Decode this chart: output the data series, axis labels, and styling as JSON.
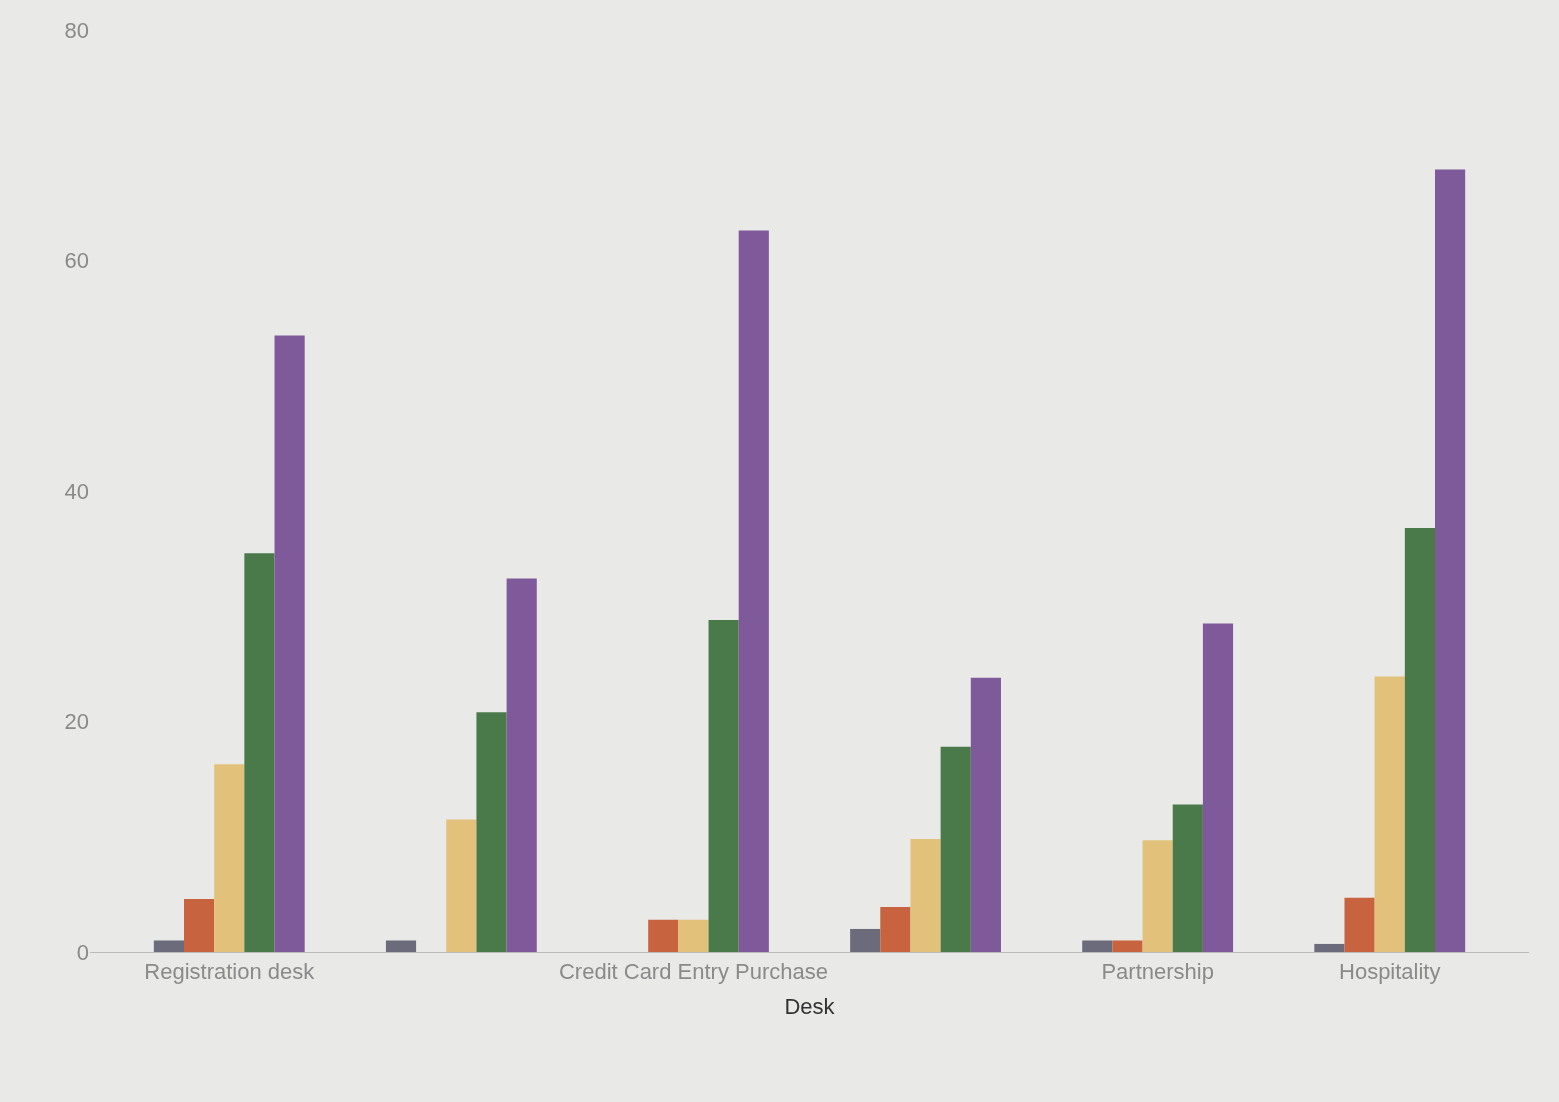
{
  "chart_data": {
    "type": "bar",
    "xlabel": "Desk",
    "categories": [
      "Registration desk",
      null,
      "Credit Card Entry Purchase",
      null,
      "Partnership",
      "Hospitality"
    ],
    "series": [
      {
        "color": "#6b6b7b",
        "values": [
          1,
          1,
          0,
          2,
          1,
          0.7
        ]
      },
      {
        "color": "#c8633f",
        "values": [
          4.6,
          0,
          2.8,
          3.9,
          1,
          4.7
        ]
      },
      {
        "color": "#e2c27a",
        "values": [
          16.3,
          11.5,
          2.8,
          9.8,
          9.7,
          23.9
        ]
      },
      {
        "color": "#4a7a4a",
        "values": [
          34.6,
          20.8,
          28.8,
          17.8,
          12.8,
          36.8
        ]
      },
      {
        "color": "#7f5a9a",
        "values": [
          53.5,
          32.4,
          62.6,
          23.8,
          28.5,
          67.9
        ]
      }
    ],
    "ylim": [
      0,
      80
    ],
    "yticks": [
      0,
      20,
      40,
      60,
      80
    ],
    "grid": false
  }
}
